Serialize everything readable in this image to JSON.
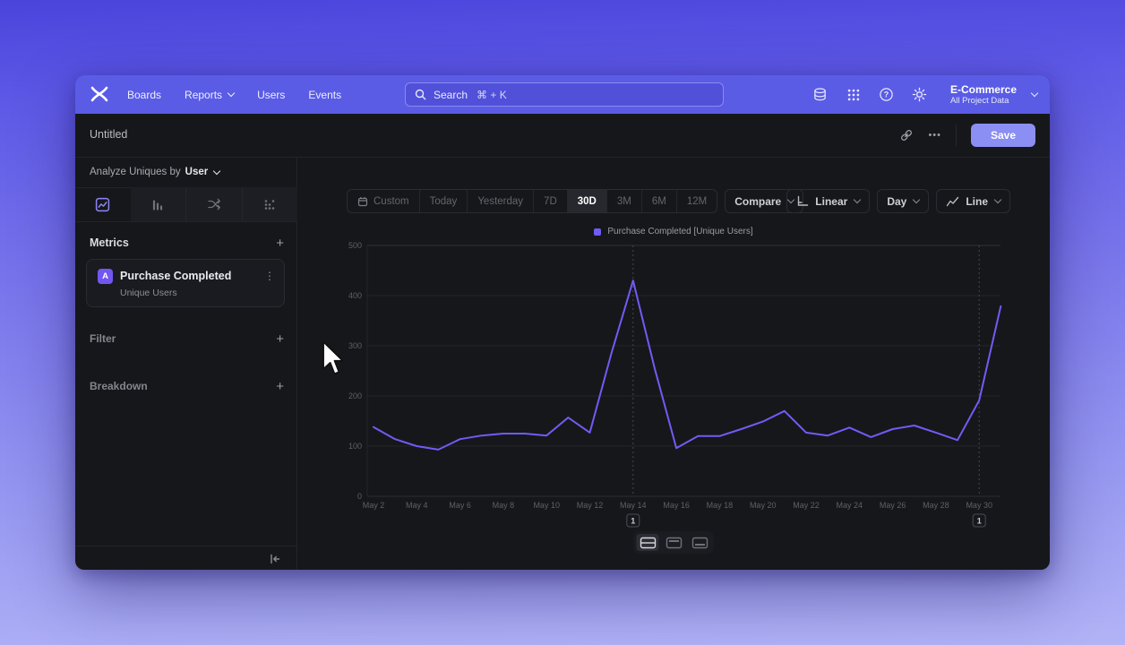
{
  "nav": {
    "links": [
      {
        "label": "Boards",
        "chevron": false
      },
      {
        "label": "Reports",
        "chevron": true
      },
      {
        "label": "Users",
        "chevron": false
      },
      {
        "label": "Events",
        "chevron": false
      }
    ],
    "search": {
      "label": "Search",
      "shortcut": "⌘ + K"
    },
    "project": {
      "name": "E-Commerce",
      "scope": "All Project Data"
    }
  },
  "titlebar": {
    "title": "Untitled",
    "save_label": "Save"
  },
  "icons": {
    "plus": "+",
    "more_horizontal": "•••",
    "more_vertical": "⋮"
  },
  "sidebar": {
    "analyze": {
      "prefix": "Analyze Uniques by",
      "value": "User"
    },
    "tabs": [
      {
        "name": "insights",
        "active": true
      },
      {
        "name": "funnels",
        "active": false
      },
      {
        "name": "flows",
        "active": false
      },
      {
        "name": "retention",
        "active": false
      }
    ],
    "metrics_label": "Metrics",
    "filter_label": "Filter",
    "breakdown_label": "Breakdown",
    "metric_card": {
      "badge": "A",
      "title": "Purchase Completed",
      "subtitle": "Unique Users"
    }
  },
  "toolbar": {
    "ranges": [
      "Custom",
      "Today",
      "Yesterday",
      "7D",
      "30D",
      "3M",
      "6M",
      "12M"
    ],
    "active_range": "30D",
    "compare_label": "Compare",
    "scale_label": "Linear",
    "interval_label": "Day",
    "chart_type_label": "Line"
  },
  "chart_data": {
    "type": "line",
    "title": "",
    "legend": [
      {
        "label": "Purchase Completed [Unique Users]",
        "color": "#6f5cf6"
      }
    ],
    "legend_position": "top",
    "grid": true,
    "ylim": [
      0,
      500
    ],
    "yticks": [
      0,
      100,
      200,
      300,
      400,
      500
    ],
    "xtick_every": 2,
    "x": [
      "May 2",
      "May 3",
      "May 4",
      "May 5",
      "May 6",
      "May 7",
      "May 8",
      "May 9",
      "May 10",
      "May 11",
      "May 12",
      "May 13",
      "May 14",
      "May 15",
      "May 16",
      "May 17",
      "May 18",
      "May 19",
      "May 20",
      "May 21",
      "May 22",
      "May 23",
      "May 24",
      "May 25",
      "May 26",
      "May 27",
      "May 28",
      "May 29",
      "May 30",
      "May 31"
    ],
    "series": [
      {
        "name": "Purchase Completed [Unique Users]",
        "color": "#6f5cf6",
        "values": [
          138,
          114,
          100,
          93,
          114,
          121,
          125,
          125,
          121,
          157,
          127,
          285,
          430,
          255,
          96,
          120,
          120,
          134,
          149,
          170,
          127,
          121,
          137,
          118,
          134,
          141,
          127,
          112,
          191,
          379
        ]
      }
    ],
    "annotations": [
      {
        "label": "1",
        "date": "May 14"
      },
      {
        "label": "1",
        "date": "May 30"
      }
    ]
  },
  "colors": {
    "accent": "#6f5cf6",
    "nav": "#5a5ce6",
    "save_button": "#8b8ef2",
    "window_bg": "#16171a"
  }
}
